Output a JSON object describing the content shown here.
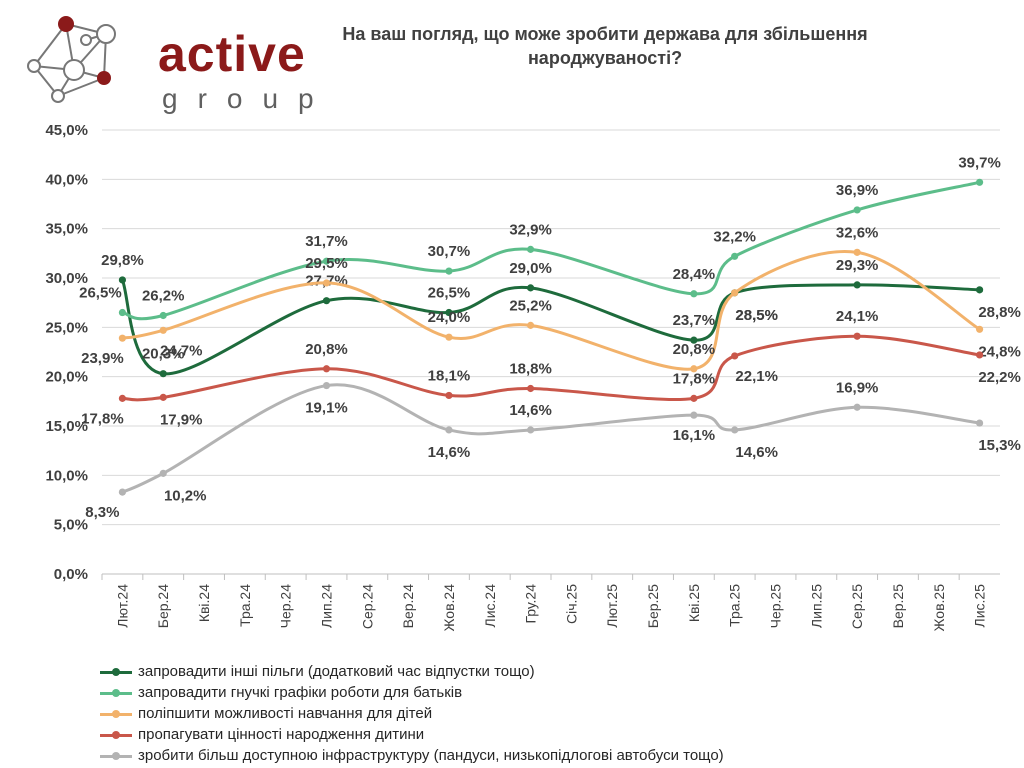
{
  "logo": {
    "word": "active",
    "sub": "group"
  },
  "chart_data": {
    "type": "line",
    "title": "На ваш погляд, що може зробити держава для збільшення народжуваності?",
    "categories": [
      "Лют.24",
      "Бер.24",
      "Кві.24",
      "Тра.24",
      "Чер.24",
      "Лип.24",
      "Сер.24",
      "Вер.24",
      "Жов.24",
      "Лис.24",
      "Гру.24",
      "Січ.25",
      "Лют.25",
      "Бер.25",
      "Кві.25",
      "Тра.25",
      "Чер.25",
      "Лип.25",
      "Сер.25",
      "Вер.25",
      "Жов.25",
      "Лис.25"
    ],
    "ylim": [
      0,
      45
    ],
    "yticks": [
      "0,0%",
      "5,0%",
      "10,0%",
      "15,0%",
      "20,0%",
      "25,0%",
      "30,0%",
      "35,0%",
      "40,0%",
      "45,0%"
    ],
    "grid": true,
    "legend_position": "bottom-left",
    "series": [
      {
        "name": "запровадити інші пільги (додатковий час відпустки тощо)",
        "color": "#1e6b3c",
        "points": [
          [
            0,
            29.8
          ],
          [
            1,
            20.3
          ],
          [
            5,
            27.7
          ],
          [
            8,
            26.5
          ],
          [
            10,
            29.0
          ],
          [
            14,
            23.7
          ],
          [
            15,
            28.5
          ],
          [
            18,
            29.3
          ],
          [
            21,
            28.8
          ]
        ],
        "labels": [
          "29,8%",
          "20,3%",
          "27,7%",
          "26,5%",
          "29,0%",
          "23,7%",
          "28,5%",
          "29,3%",
          "28,8%"
        ]
      },
      {
        "name": "запровадити гнучкі графіки роботи для батьків",
        "color": "#5cbd8a",
        "points": [
          [
            0,
            26.5
          ],
          [
            1,
            26.2
          ],
          [
            5,
            31.7
          ],
          [
            8,
            30.7
          ],
          [
            10,
            32.9
          ],
          [
            14,
            28.4
          ],
          [
            15,
            32.2
          ],
          [
            18,
            36.9
          ],
          [
            21,
            39.7
          ]
        ],
        "labels": [
          "26,5%",
          "26,2%",
          "31,7%",
          "30,7%",
          "32,9%",
          "28,4%",
          "32,2%",
          "36,9%",
          "39,7%"
        ]
      },
      {
        "name": "поліпшити можливості навчання для дітей",
        "color": "#f2b26b",
        "points": [
          [
            0,
            23.9
          ],
          [
            1,
            24.7
          ],
          [
            5,
            29.5
          ],
          [
            8,
            24.0
          ],
          [
            10,
            25.2
          ],
          [
            14,
            20.8
          ],
          [
            15,
            28.5
          ],
          [
            18,
            32.6
          ],
          [
            21,
            24.8
          ]
        ],
        "labels": [
          "23,9%",
          "24,7%",
          "29,5%",
          "24,0%",
          "25,2%",
          "20,8%",
          "28,5%",
          "32,6%",
          "24,8%"
        ]
      },
      {
        "name": "пропагувати цінності народження дитини",
        "color": "#c9574a",
        "points": [
          [
            0,
            17.8
          ],
          [
            1,
            17.9
          ],
          [
            5,
            20.8
          ],
          [
            8,
            18.1
          ],
          [
            10,
            18.8
          ],
          [
            14,
            17.8
          ],
          [
            15,
            22.1
          ],
          [
            18,
            24.1
          ],
          [
            21,
            22.2
          ]
        ],
        "labels": [
          "17,8%",
          "17,9%",
          "20,8%",
          "18,1%",
          "18,8%",
          "17,8%",
          "22,1%",
          "24,1%",
          "22,2%"
        ]
      },
      {
        "name": "зробити більш доступною інфраструктуру (пандуси, низькопідлогові автобуси тощо)",
        "color": "#b3b3b3",
        "points": [
          [
            0,
            8.3
          ],
          [
            1,
            10.2
          ],
          [
            5,
            19.1
          ],
          [
            8,
            14.6
          ],
          [
            10,
            14.6
          ],
          [
            14,
            16.1
          ],
          [
            15,
            14.6
          ],
          [
            18,
            16.9
          ],
          [
            21,
            15.3
          ]
        ],
        "labels": [
          "8,3%",
          "10,2%",
          "19,1%",
          "14,6%",
          "14,6%",
          "16,1%",
          "14,6%",
          "16,9%",
          "15,3%"
        ]
      }
    ]
  }
}
